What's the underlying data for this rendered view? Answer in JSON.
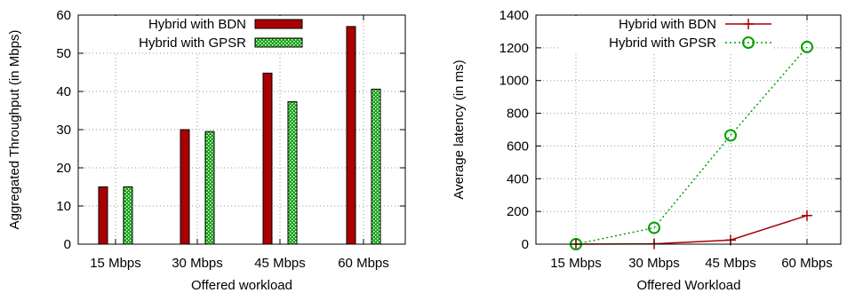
{
  "chart_data": [
    {
      "type": "bar",
      "title": "",
      "xlabel": "Offered workload",
      "ylabel": "Aggregated Throughput (in Mbps)",
      "ylim": [
        0,
        60
      ],
      "yticks": [
        "0",
        "10",
        "20",
        "30",
        "40",
        "50",
        "60"
      ],
      "categories": [
        "15 Mbps",
        "30 Mbps",
        "45 Mbps",
        "60 Mbps"
      ],
      "series": [
        {
          "name": "Hybrid with BDN",
          "color": "#aa0000",
          "pattern": "solid",
          "values": [
            15,
            30,
            44.8,
            57
          ]
        },
        {
          "name": "Hybrid with GPSR",
          "color": "#00a000",
          "pattern": "dotted",
          "values": [
            15,
            29.5,
            37.3,
            40.6
          ]
        }
      ],
      "grid": true,
      "legend": "top-right"
    },
    {
      "type": "line",
      "title": "",
      "xlabel": "Offered Workload",
      "ylabel": "Average latency (in ms)",
      "ylim": [
        0,
        1400
      ],
      "yticks": [
        "0",
        "200",
        "400",
        "600",
        "800",
        "1000",
        "1200",
        "1400"
      ],
      "categories": [
        "15 Mbps",
        "30 Mbps",
        "45 Mbps",
        "60 Mbps"
      ],
      "series": [
        {
          "name": "Hybrid with BDN",
          "color": "#aa0000",
          "marker": "plus",
          "line": "solid",
          "values": [
            0,
            2,
            25,
            175
          ]
        },
        {
          "name": "Hybrid with GPSR",
          "color": "#00a000",
          "marker": "circle",
          "line": "dotted",
          "values": [
            0,
            100,
            665,
            1205
          ]
        }
      ],
      "grid": true,
      "legend": "top-left"
    }
  ]
}
